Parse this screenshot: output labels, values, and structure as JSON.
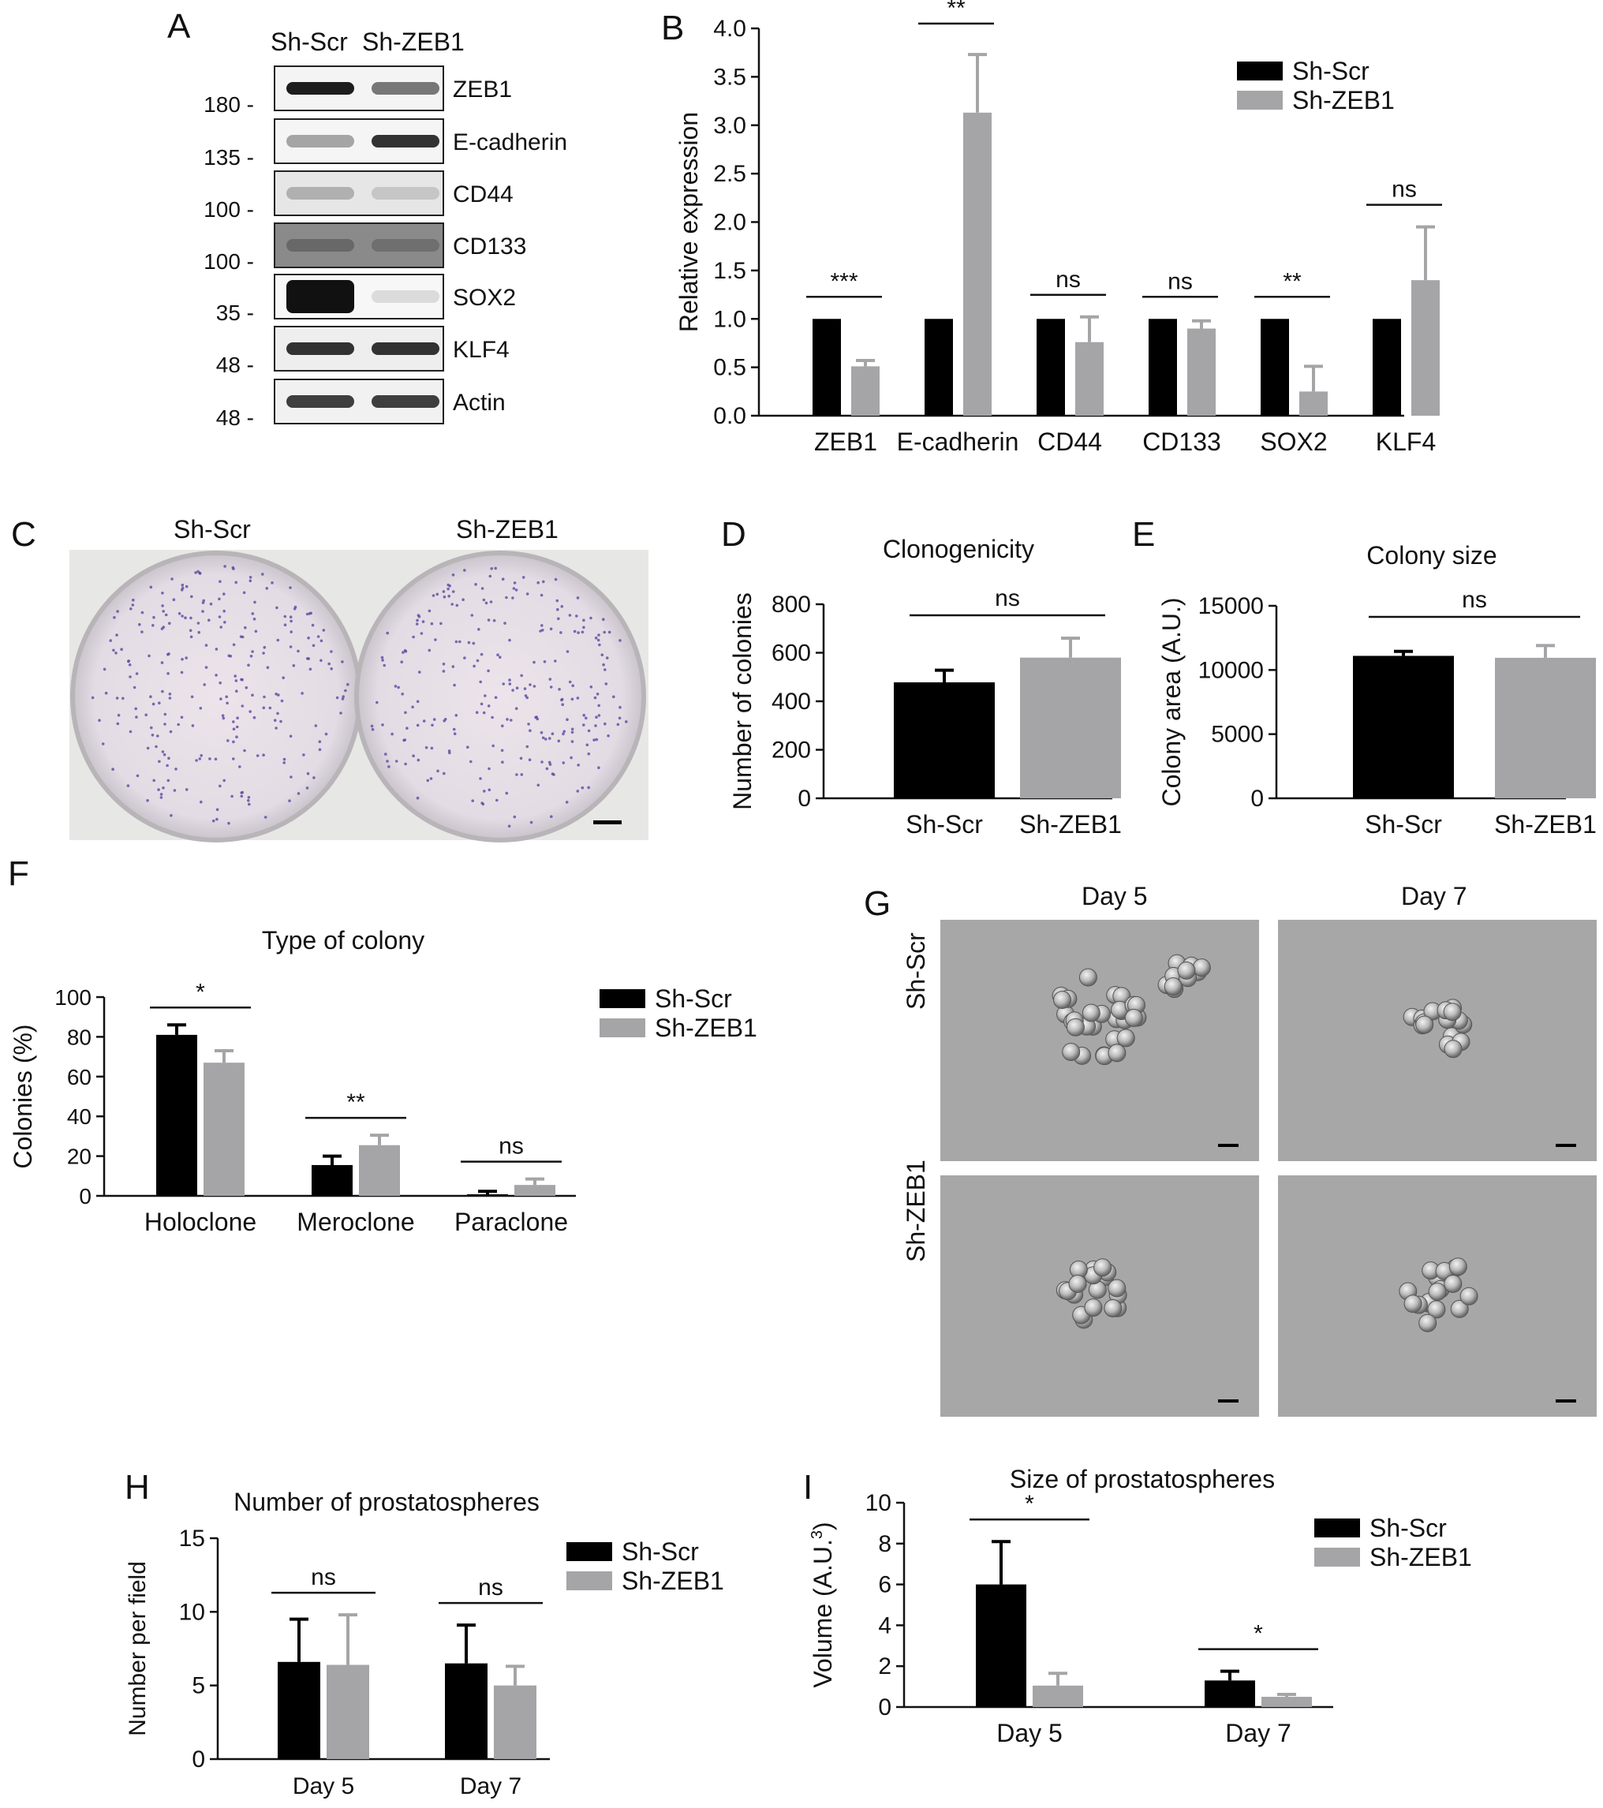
{
  "colors": {
    "scr": "#000000",
    "zeb": "#a5a5a7"
  },
  "panel_letters": [
    "A",
    "B",
    "C",
    "D",
    "E",
    "F",
    "G",
    "H",
    "I"
  ],
  "blot": {
    "lane_labels": [
      "Sh-Scr",
      "Sh-ZEB1"
    ],
    "rows": [
      {
        "protein": "ZEB1",
        "marker": "180"
      },
      {
        "protein": "E-cadherin",
        "marker": "135"
      },
      {
        "protein": "CD44",
        "marker": "100"
      },
      {
        "protein": "CD133",
        "marker": "100"
      },
      {
        "protein": "SOX2",
        "marker": "35"
      },
      {
        "protein": "KLF4",
        "marker": "48"
      },
      {
        "protein": "Actin",
        "marker": "48"
      }
    ]
  },
  "plate": {
    "labels": [
      "Sh-Scr",
      "Sh-ZEB1"
    ]
  },
  "micro": {
    "cols": [
      "Day 5",
      "Day 7"
    ],
    "rows": [
      "Sh-Scr",
      "Sh-ZEB1"
    ]
  },
  "chart_data": [
    {
      "id": "B",
      "type": "bar",
      "title": "",
      "xlabel": "",
      "ylabel": "Relative expression",
      "ylim": [
        0,
        4.0
      ],
      "yticks": [
        "0.0",
        "0.5",
        "1.0",
        "1.5",
        "2.0",
        "2.5",
        "3.0",
        "3.5",
        "4.0"
      ],
      "categories": [
        "ZEB1",
        "E-cadherin",
        "CD44",
        "CD133",
        "SOX2",
        "KLF4"
      ],
      "series": [
        {
          "name": "Sh-Scr",
          "values": [
            1.0,
            1.0,
            1.0,
            1.0,
            1.0,
            1.0
          ],
          "errors": [
            0,
            0,
            0,
            0,
            0,
            0
          ]
        },
        {
          "name": "Sh-ZEB1",
          "values": [
            0.51,
            3.13,
            0.76,
            0.9,
            0.25,
            1.4
          ],
          "errors": [
            0.06,
            0.6,
            0.26,
            0.08,
            0.26,
            0.55
          ]
        }
      ],
      "significance": [
        "***",
        "**",
        "ns",
        "ns",
        "**",
        "ns"
      ],
      "legend": "top-right"
    },
    {
      "id": "D",
      "type": "bar",
      "title": "Clonogenicity",
      "xlabel": "",
      "ylabel": "Number of colonies",
      "ylim": [
        0,
        800
      ],
      "yticks": [
        "0",
        "200",
        "400",
        "600",
        "800"
      ],
      "categories": [
        "Sh-Scr",
        "Sh-ZEB1"
      ],
      "values": [
        478,
        580
      ],
      "errors": [
        50,
        80
      ],
      "significance": [
        "ns"
      ]
    },
    {
      "id": "E",
      "type": "bar",
      "title": "Colony size",
      "xlabel": "",
      "ylabel": "Colony area (A.U.)",
      "ylim": [
        0,
        15000
      ],
      "yticks": [
        "0",
        "5000",
        "10000",
        "15000"
      ],
      "categories": [
        "Sh-Scr",
        "Sh-ZEB1"
      ],
      "values": [
        11100,
        10950
      ],
      "errors": [
        350,
        950
      ],
      "significance": [
        "ns"
      ]
    },
    {
      "id": "F",
      "type": "bar",
      "title": "Type of colony",
      "xlabel": "",
      "ylabel": "Colonies (%)",
      "ylim": [
        0,
        100
      ],
      "yticks": [
        "0",
        "20",
        "40",
        "60",
        "80",
        "100"
      ],
      "categories": [
        "Holoclone",
        "Meroclone",
        "Paraclone"
      ],
      "series": [
        {
          "name": "Sh-Scr",
          "values": [
            81,
            15.5,
            0.8
          ],
          "errors": [
            5,
            4.5,
            1.5
          ]
        },
        {
          "name": "Sh-ZEB1",
          "values": [
            67,
            25.5,
            5.5
          ],
          "errors": [
            6,
            5,
            3
          ]
        }
      ],
      "significance": [
        "*",
        "**",
        "ns"
      ],
      "legend": "top-right"
    },
    {
      "id": "H",
      "type": "bar",
      "title": "Number of prostatospheres",
      "xlabel": "",
      "ylabel": "Number per field",
      "ylim": [
        0,
        15
      ],
      "yticks": [
        "0",
        "5",
        "10",
        "15"
      ],
      "categories": [
        "Day 5",
        "Day 7"
      ],
      "series": [
        {
          "name": "Sh-Scr",
          "values": [
            6.6,
            6.5
          ],
          "errors": [
            2.9,
            2.6
          ]
        },
        {
          "name": "Sh-ZEB1",
          "values": [
            6.4,
            5.0
          ],
          "errors": [
            3.4,
            1.3
          ]
        }
      ],
      "significance": [
        "ns",
        "ns"
      ],
      "legend": "top-right"
    },
    {
      "id": "I",
      "type": "bar",
      "title": "Size of prostatospheres",
      "xlabel": "",
      "ylabel": "Volume (A.U.",
      "ylabel_sup": "3",
      "ylabel_end": ")",
      "ylim": [
        0,
        10
      ],
      "yticks": [
        "0",
        "2",
        "4",
        "6",
        "8",
        "10"
      ],
      "categories": [
        "Day 5",
        "Day 7"
      ],
      "series": [
        {
          "name": "Sh-Scr",
          "values": [
            6.0,
            1.3
          ],
          "errors": [
            2.1,
            0.45
          ]
        },
        {
          "name": "Sh-ZEB1",
          "values": [
            1.05,
            0.5
          ],
          "errors": [
            0.6,
            0.12
          ]
        }
      ],
      "significance": [
        "*",
        "*"
      ],
      "legend": "top-right"
    }
  ]
}
